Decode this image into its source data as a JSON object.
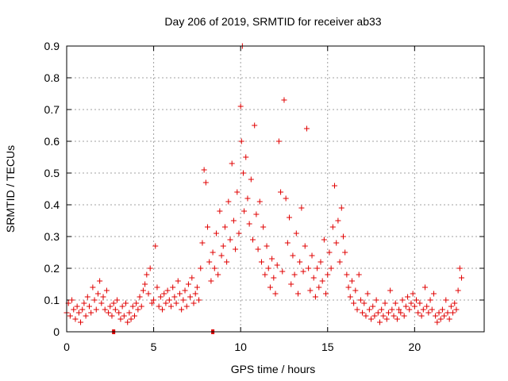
{
  "chart_data": {
    "type": "scatter",
    "title": "Day 206 of 2019, SRMTID for receiver ab33",
    "xlabel": "GPS time / hours",
    "ylabel": "SRMTID / TECUs",
    "xlim": [
      0,
      24
    ],
    "ylim": [
      0,
      0.9
    ],
    "grid": true,
    "xticks": [
      0,
      5,
      10,
      15,
      20
    ],
    "xtick_labels": [
      "0",
      "5",
      "10",
      "15",
      "20"
    ],
    "yticks": [
      0,
      0.1,
      0.2,
      0.3,
      0.4,
      0.5,
      0.6,
      0.7,
      0.8,
      0.9
    ],
    "ytick_labels": [
      "0",
      "0.1",
      "0.2",
      "0.3",
      "0.4",
      "0.5",
      "0.6",
      "0.7",
      "0.8",
      "0.9"
    ],
    "marker": "+",
    "color": "#e00000",
    "series": [
      {
        "name": "SRMTID",
        "points": [
          [
            0.0,
            0.06
          ],
          [
            0.1,
            0.09
          ],
          [
            0.2,
            0.05
          ],
          [
            0.3,
            0.1
          ],
          [
            0.4,
            0.07
          ],
          [
            0.5,
            0.04
          ],
          [
            0.6,
            0.08
          ],
          [
            0.7,
            0.06
          ],
          [
            0.8,
            0.03
          ],
          [
            0.9,
            0.07
          ],
          [
            1.0,
            0.09
          ],
          [
            1.1,
            0.05
          ],
          [
            1.2,
            0.11
          ],
          [
            1.3,
            0.08
          ],
          [
            1.4,
            0.06
          ],
          [
            1.5,
            0.14
          ],
          [
            1.6,
            0.1
          ],
          [
            1.7,
            0.07
          ],
          [
            1.8,
            0.12
          ],
          [
            1.9,
            0.16
          ],
          [
            2.0,
            0.09
          ],
          [
            2.1,
            0.11
          ],
          [
            2.2,
            0.07
          ],
          [
            2.3,
            0.13
          ],
          [
            2.4,
            0.06
          ],
          [
            2.5,
            0.08
          ],
          [
            2.6,
            0.05
          ],
          [
            2.7,
            0.09
          ],
          [
            2.8,
            0.07
          ],
          [
            2.9,
            0.1
          ],
          [
            3.0,
            0.06
          ],
          [
            3.1,
            0.04
          ],
          [
            3.2,
            0.08
          ],
          [
            3.3,
            0.05
          ],
          [
            3.4,
            0.09
          ],
          [
            3.5,
            0.03
          ],
          [
            3.6,
            0.06
          ],
          [
            3.7,
            0.04
          ],
          [
            3.8,
            0.08
          ],
          [
            3.9,
            0.05
          ],
          [
            4.0,
            0.09
          ],
          [
            4.1,
            0.07
          ],
          [
            4.2,
            0.11
          ],
          [
            4.3,
            0.08
          ],
          [
            4.4,
            0.13
          ],
          [
            4.5,
            0.15
          ],
          [
            4.6,
            0.18
          ],
          [
            4.7,
            0.12
          ],
          [
            4.8,
            0.2
          ],
          [
            4.9,
            0.09
          ],
          [
            5.0,
            0.1
          ],
          [
            5.1,
            0.27
          ],
          [
            5.2,
            0.14
          ],
          [
            5.3,
            0.08
          ],
          [
            5.4,
            0.11
          ],
          [
            5.5,
            0.07
          ],
          [
            5.6,
            0.12
          ],
          [
            5.7,
            0.09
          ],
          [
            5.8,
            0.13
          ],
          [
            5.9,
            0.1
          ],
          [
            6.0,
            0.08
          ],
          [
            6.1,
            0.14
          ],
          [
            6.2,
            0.11
          ],
          [
            6.3,
            0.09
          ],
          [
            6.4,
            0.16
          ],
          [
            6.5,
            0.12
          ],
          [
            6.6,
            0.07
          ],
          [
            6.7,
            0.1
          ],
          [
            6.8,
            0.13
          ],
          [
            6.9,
            0.08
          ],
          [
            7.0,
            0.15
          ],
          [
            7.1,
            0.11
          ],
          [
            7.2,
            0.17
          ],
          [
            7.3,
            0.09
          ],
          [
            7.4,
            0.12
          ],
          [
            7.5,
            0.14
          ],
          [
            7.6,
            0.1
          ],
          [
            7.7,
            0.2
          ],
          [
            7.8,
            0.28
          ],
          [
            7.9,
            0.51
          ],
          [
            8.0,
            0.47
          ],
          [
            8.1,
            0.33
          ],
          [
            8.2,
            0.22
          ],
          [
            8.3,
            0.16
          ],
          [
            8.4,
            0.25
          ],
          [
            8.5,
            0.2
          ],
          [
            8.6,
            0.31
          ],
          [
            8.7,
            0.18
          ],
          [
            8.8,
            0.38
          ],
          [
            8.9,
            0.24
          ],
          [
            9.0,
            0.27
          ],
          [
            9.1,
            0.33
          ],
          [
            9.2,
            0.22
          ],
          [
            9.3,
            0.41
          ],
          [
            9.4,
            0.29
          ],
          [
            9.5,
            0.53
          ],
          [
            9.6,
            0.35
          ],
          [
            9.7,
            0.26
          ],
          [
            9.8,
            0.44
          ],
          [
            9.9,
            0.31
          ],
          [
            10.0,
            0.71
          ],
          [
            10.05,
            0.6
          ],
          [
            10.1,
            0.9
          ],
          [
            10.15,
            0.5
          ],
          [
            10.2,
            0.38
          ],
          [
            10.3,
            0.55
          ],
          [
            10.4,
            0.42
          ],
          [
            10.5,
            0.34
          ],
          [
            10.6,
            0.48
          ],
          [
            10.7,
            0.29
          ],
          [
            10.8,
            0.65
          ],
          [
            10.9,
            0.37
          ],
          [
            11.0,
            0.26
          ],
          [
            11.1,
            0.41
          ],
          [
            11.2,
            0.22
          ],
          [
            11.3,
            0.33
          ],
          [
            11.4,
            0.18
          ],
          [
            11.5,
            0.27
          ],
          [
            11.6,
            0.2
          ],
          [
            11.7,
            0.14
          ],
          [
            11.8,
            0.23
          ],
          [
            11.9,
            0.17
          ],
          [
            12.0,
            0.12
          ],
          [
            12.1,
            0.21
          ],
          [
            12.2,
            0.6
          ],
          [
            12.3,
            0.44
          ],
          [
            12.4,
            0.19
          ],
          [
            12.5,
            0.73
          ],
          [
            12.6,
            0.42
          ],
          [
            12.7,
            0.28
          ],
          [
            12.8,
            0.36
          ],
          [
            12.9,
            0.15
          ],
          [
            13.0,
            0.24
          ],
          [
            13.1,
            0.18
          ],
          [
            13.2,
            0.31
          ],
          [
            13.3,
            0.12
          ],
          [
            13.4,
            0.22
          ],
          [
            13.5,
            0.39
          ],
          [
            13.6,
            0.19
          ],
          [
            13.7,
            0.27
          ],
          [
            13.8,
            0.64
          ],
          [
            13.9,
            0.2
          ],
          [
            14.0,
            0.13
          ],
          [
            14.1,
            0.24
          ],
          [
            14.2,
            0.17
          ],
          [
            14.3,
            0.11
          ],
          [
            14.4,
            0.2
          ],
          [
            14.5,
            0.14
          ],
          [
            14.6,
            0.22
          ],
          [
            14.7,
            0.16
          ],
          [
            14.8,
            0.29
          ],
          [
            14.9,
            0.12
          ],
          [
            15.0,
            0.18
          ],
          [
            15.1,
            0.25
          ],
          [
            15.2,
            0.2
          ],
          [
            15.3,
            0.33
          ],
          [
            15.4,
            0.46
          ],
          [
            15.5,
            0.28
          ],
          [
            15.6,
            0.35
          ],
          [
            15.7,
            0.22
          ],
          [
            15.8,
            0.39
          ],
          [
            15.9,
            0.3
          ],
          [
            16.0,
            0.25
          ],
          [
            16.1,
            0.18
          ],
          [
            16.2,
            0.14
          ],
          [
            16.3,
            0.11
          ],
          [
            16.4,
            0.16
          ],
          [
            16.5,
            0.09
          ],
          [
            16.6,
            0.13
          ],
          [
            16.7,
            0.07
          ],
          [
            16.8,
            0.18
          ],
          [
            16.9,
            0.1
          ],
          [
            17.0,
            0.06
          ],
          [
            17.1,
            0.09
          ],
          [
            17.2,
            0.05
          ],
          [
            17.3,
            0.12
          ],
          [
            17.4,
            0.07
          ],
          [
            17.5,
            0.04
          ],
          [
            17.6,
            0.08
          ],
          [
            17.7,
            0.05
          ],
          [
            17.8,
            0.1
          ],
          [
            17.9,
            0.06
          ],
          [
            18.0,
            0.03
          ],
          [
            18.1,
            0.07
          ],
          [
            18.2,
            0.05
          ],
          [
            18.3,
            0.09
          ],
          [
            18.4,
            0.04
          ],
          [
            18.5,
            0.06
          ],
          [
            18.6,
            0.13
          ],
          [
            18.7,
            0.07
          ],
          [
            18.8,
            0.05
          ],
          [
            18.9,
            0.09
          ],
          [
            19.0,
            0.04
          ],
          [
            19.1,
            0.07
          ],
          [
            19.2,
            0.06
          ],
          [
            19.3,
            0.1
          ],
          [
            19.4,
            0.05
          ],
          [
            19.5,
            0.08
          ],
          [
            19.6,
            0.11
          ],
          [
            19.7,
            0.07
          ],
          [
            19.8,
            0.09
          ],
          [
            19.9,
            0.12
          ],
          [
            20.0,
            0.08
          ],
          [
            20.1,
            0.1
          ],
          [
            20.2,
            0.06
          ],
          [
            20.3,
            0.09
          ],
          [
            20.4,
            0.05
          ],
          [
            20.5,
            0.07
          ],
          [
            20.6,
            0.14
          ],
          [
            20.7,
            0.08
          ],
          [
            20.8,
            0.06
          ],
          [
            20.9,
            0.1
          ],
          [
            21.0,
            0.07
          ],
          [
            21.1,
            0.12
          ],
          [
            21.2,
            0.05
          ],
          [
            21.3,
            0.03
          ],
          [
            21.4,
            0.06
          ],
          [
            21.5,
            0.04
          ],
          [
            21.6,
            0.07
          ],
          [
            21.7,
            0.05
          ],
          [
            21.8,
            0.1
          ],
          [
            21.9,
            0.06
          ],
          [
            22.0,
            0.04
          ],
          [
            22.1,
            0.08
          ],
          [
            22.2,
            0.06
          ],
          [
            22.3,
            0.09
          ],
          [
            22.4,
            0.07
          ],
          [
            22.5,
            0.13
          ],
          [
            22.6,
            0.2
          ],
          [
            22.7,
            0.17
          ]
        ]
      }
    ],
    "missing_markers_x": [
      2.7,
      8.4
    ]
  }
}
